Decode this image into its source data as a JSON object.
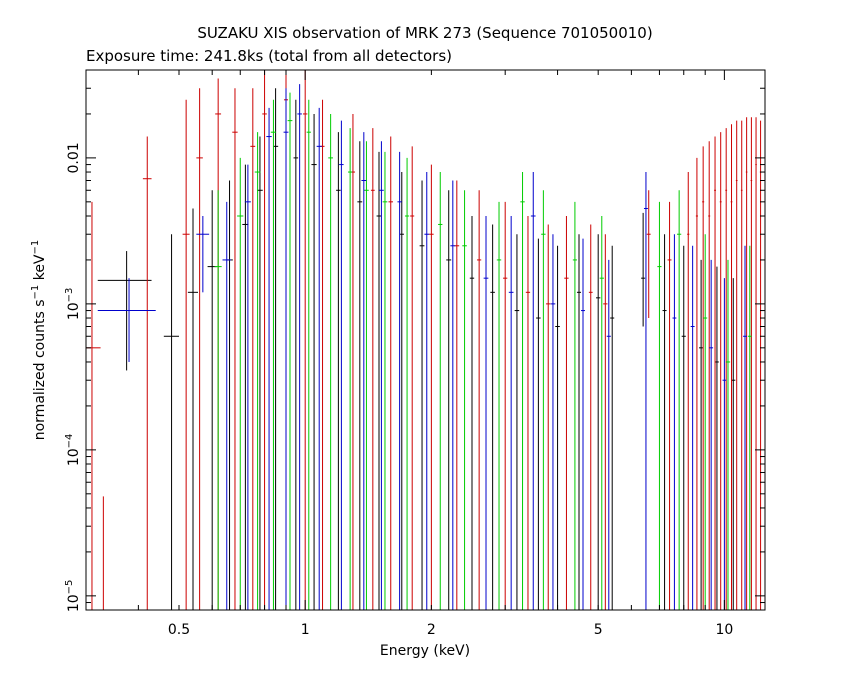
{
  "chart_data": {
    "type": "scatter",
    "title": "SUZAKU XIS observation of MRK 273 (Sequence 701050010)",
    "subtitle": "Exposure time: 241.8ks (total from all detectors)",
    "xlabel": "Energy (keV)",
    "ylabel": {
      "prefix": "normalized counts s",
      "sup1": "−1",
      "mid": " keV",
      "sup2": "−1"
    },
    "x_scale": "log",
    "y_scale": "log",
    "xlim": [
      0.3,
      12.5
    ],
    "ylim": [
      8e-06,
      0.04
    ],
    "x_ticks": [
      {
        "value": 0.5,
        "label": "0.5"
      },
      {
        "value": 1,
        "label": "1"
      },
      {
        "value": 2,
        "label": "2"
      },
      {
        "value": 5,
        "label": "5"
      },
      {
        "value": 10,
        "label": "10"
      }
    ],
    "y_ticks": [
      {
        "value": 1e-05,
        "base": "10",
        "exp": "−5"
      },
      {
        "value": 0.0001,
        "base": "10",
        "exp": "−4"
      },
      {
        "value": 0.001,
        "base": "10",
        "exp": "−3"
      },
      {
        "value": 0.01,
        "base": "0.01",
        "exp": ""
      }
    ],
    "grid": false,
    "legend": "none",
    "series": [
      {
        "color": "#000000",
        "points": [
          {
            "x": 0.375,
            "y": 0.00145,
            "xerr": 0.055,
            "ylo": 0.00035,
            "yhi": 0.0023
          },
          {
            "x": 0.48,
            "y": 0.0006,
            "xerr": 0.02,
            "ylo": 8e-06,
            "yhi": 0.003
          },
          {
            "x": 0.54,
            "y": 0.0012,
            "xerr": 0.015,
            "ylo": 8e-06,
            "yhi": 0.0045
          },
          {
            "x": 0.6,
            "y": 0.0018,
            "xerr": 0.015,
            "ylo": 8e-06,
            "yhi": 0.006
          },
          {
            "x": 0.66,
            "y": 0.002,
            "xerr": 0.012,
            "ylo": 8e-06,
            "yhi": 0.007
          },
          {
            "x": 0.72,
            "y": 0.0035,
            "xerr": 0.012,
            "ylo": 8e-06,
            "yhi": 0.009
          },
          {
            "x": 0.78,
            "y": 0.006,
            "xerr": 0.012,
            "ylo": 8e-06,
            "yhi": 0.014
          },
          {
            "x": 0.85,
            "y": 0.012,
            "xerr": 0.012,
            "ylo": 8e-06,
            "yhi": 0.03
          },
          {
            "x": 0.95,
            "y": 0.01,
            "xerr": 0.012,
            "ylo": 8e-06,
            "yhi": 0.025
          },
          {
            "x": 1.05,
            "y": 0.009,
            "xerr": 0.015,
            "ylo": 8e-06,
            "yhi": 0.02
          },
          {
            "x": 1.2,
            "y": 0.006,
            "xerr": 0.015,
            "ylo": 8e-06,
            "yhi": 0.015
          },
          {
            "x": 1.35,
            "y": 0.005,
            "xerr": 0.018,
            "ylo": 8e-06,
            "yhi": 0.013
          },
          {
            "x": 1.5,
            "y": 0.004,
            "xerr": 0.02,
            "ylo": 8e-06,
            "yhi": 0.011
          },
          {
            "x": 1.7,
            "y": 0.003,
            "xerr": 0.02,
            "ylo": 8e-06,
            "yhi": 0.008
          },
          {
            "x": 1.9,
            "y": 0.0025,
            "xerr": 0.025,
            "ylo": 8e-06,
            "yhi": 0.007
          },
          {
            "x": 2.2,
            "y": 0.002,
            "xerr": 0.03,
            "ylo": 8e-06,
            "yhi": 0.006
          },
          {
            "x": 2.5,
            "y": 0.0015,
            "xerr": 0.03,
            "ylo": 8e-06,
            "yhi": 0.004
          },
          {
            "x": 2.8,
            "y": 0.0012,
            "xerr": 0.035,
            "ylo": 8e-06,
            "yhi": 0.0035
          },
          {
            "x": 3.2,
            "y": 0.0009,
            "xerr": 0.04,
            "ylo": 8e-06,
            "yhi": 0.003
          },
          {
            "x": 3.6,
            "y": 0.0008,
            "xerr": 0.045,
            "ylo": 8e-06,
            "yhi": 0.0028
          },
          {
            "x": 4.0,
            "y": 0.0007,
            "xerr": 0.05,
            "ylo": 8e-06,
            "yhi": 0.0025
          },
          {
            "x": 4.5,
            "y": 0.0012,
            "xerr": 0.05,
            "ylo": 8e-06,
            "yhi": 0.003
          },
          {
            "x": 5.0,
            "y": 0.0011,
            "xerr": 0.06,
            "ylo": 8e-06,
            "yhi": 0.003
          },
          {
            "x": 5.4,
            "y": 0.0008,
            "xerr": 0.06,
            "ylo": 8e-06,
            "yhi": 0.0025
          },
          {
            "x": 6.4,
            "y": 0.0015,
            "xerr": 0.07,
            "ylo": 0.0007,
            "yhi": 0.0042
          },
          {
            "x": 7.2,
            "y": 0.0009,
            "xerr": 0.08,
            "ylo": 8e-06,
            "yhi": 0.003
          },
          {
            "x": 8.0,
            "y": 0.0006,
            "xerr": 0.09,
            "ylo": 8e-06,
            "yhi": 0.0025
          },
          {
            "x": 8.8,
            "y": 0.0005,
            "xerr": 0.1,
            "ylo": 8e-06,
            "yhi": 0.002
          },
          {
            "x": 9.6,
            "y": 0.0004,
            "xerr": 0.1,
            "ylo": 8e-06,
            "yhi": 0.0018
          },
          {
            "x": 10.5,
            "y": 0.0003,
            "xerr": 0.12,
            "ylo": 8e-06,
            "yhi": 0.0015
          }
        ]
      },
      {
        "color": "#cc0000",
        "points": [
          {
            "x": 0.31,
            "y": 0.0005,
            "xerr": 0.015,
            "ylo": 8e-06,
            "yhi": 0.005
          },
          {
            "x": 0.33,
            "y": 1.5e-05,
            "xerr": 0,
            "ylo": 8e-06,
            "yhi": 4.8e-05
          },
          {
            "x": 0.42,
            "y": 0.0072,
            "xerr": 0.01,
            "ylo": 8e-06,
            "yhi": 0.014
          },
          {
            "x": 0.52,
            "y": 0.003,
            "xerr": 0.01,
            "ylo": 8e-06,
            "yhi": 0.025
          },
          {
            "x": 0.56,
            "y": 0.01,
            "xerr": 0.01,
            "ylo": 8e-06,
            "yhi": 0.03
          },
          {
            "x": 0.62,
            "y": 0.02,
            "xerr": 0.01,
            "ylo": 8e-06,
            "yhi": 0.035
          },
          {
            "x": 0.68,
            "y": 0.015,
            "xerr": 0.01,
            "ylo": 8e-06,
            "yhi": 0.03
          },
          {
            "x": 0.75,
            "y": 0.012,
            "xerr": 0.01,
            "ylo": 8e-06,
            "yhi": 0.03
          },
          {
            "x": 0.8,
            "y": 0.02,
            "xerr": 0.01,
            "ylo": 8e-06,
            "yhi": 0.04
          },
          {
            "x": 0.9,
            "y": 0.025,
            "xerr": 0.01,
            "ylo": 8e-06,
            "yhi": 0.04
          },
          {
            "x": 1.0,
            "y": 0.02,
            "xerr": 0.012,
            "ylo": 8e-06,
            "yhi": 0.04
          },
          {
            "x": 1.1,
            "y": 0.012,
            "xerr": 0.012,
            "ylo": 8e-06,
            "yhi": 0.025
          },
          {
            "x": 1.3,
            "y": 0.008,
            "xerr": 0.015,
            "ylo": 8e-06,
            "yhi": 0.02
          },
          {
            "x": 1.45,
            "y": 0.006,
            "xerr": 0.015,
            "ylo": 8e-06,
            "yhi": 0.016
          },
          {
            "x": 1.6,
            "y": 0.005,
            "xerr": 0.02,
            "ylo": 8e-06,
            "yhi": 0.014
          },
          {
            "x": 1.8,
            "y": 0.004,
            "xerr": 0.02,
            "ylo": 8e-06,
            "yhi": 0.012
          },
          {
            "x": 2.0,
            "y": 0.003,
            "xerr": 0.025,
            "ylo": 8e-06,
            "yhi": 0.009
          },
          {
            "x": 2.3,
            "y": 0.0025,
            "xerr": 0.03,
            "ylo": 8e-06,
            "yhi": 0.007
          },
          {
            "x": 2.6,
            "y": 0.002,
            "xerr": 0.03,
            "ylo": 8e-06,
            "yhi": 0.006
          },
          {
            "x": 3.0,
            "y": 0.0015,
            "xerr": 0.035,
            "ylo": 8e-06,
            "yhi": 0.005
          },
          {
            "x": 3.4,
            "y": 0.0012,
            "xerr": 0.04,
            "ylo": 8e-06,
            "yhi": 0.004
          },
          {
            "x": 3.8,
            "y": 0.001,
            "xerr": 0.045,
            "ylo": 8e-06,
            "yhi": 0.0035
          },
          {
            "x": 4.2,
            "y": 0.0015,
            "xerr": 0.05,
            "ylo": 8e-06,
            "yhi": 0.004
          },
          {
            "x": 4.8,
            "y": 0.0012,
            "xerr": 0.05,
            "ylo": 8e-06,
            "yhi": 0.0035
          },
          {
            "x": 5.2,
            "y": 0.001,
            "xerr": 0.06,
            "ylo": 8e-06,
            "yhi": 0.003
          },
          {
            "x": 6.6,
            "y": 0.003,
            "xerr": 0.07,
            "ylo": 0.0008,
            "yhi": 0.006
          },
          {
            "x": 7.4,
            "y": 0.002,
            "xerr": 0.08,
            "ylo": 8e-06,
            "yhi": 0.005
          },
          {
            "x": 8.2,
            "y": 0.003,
            "xerr": 0.05,
            "ylo": 8e-06,
            "yhi": 0.008
          },
          {
            "x": 8.6,
            "y": 0.004,
            "xerr": 0.05,
            "ylo": 8e-06,
            "yhi": 0.01
          },
          {
            "x": 8.9,
            "y": 0.005,
            "xerr": 0.05,
            "ylo": 8e-06,
            "yhi": 0.012
          },
          {
            "x": 9.2,
            "y": 0.004,
            "xerr": 0.05,
            "ylo": 8e-06,
            "yhi": 0.013
          },
          {
            "x": 9.5,
            "y": 0.006,
            "xerr": 0.05,
            "ylo": 8e-06,
            "yhi": 0.014
          },
          {
            "x": 9.8,
            "y": 0.005,
            "xerr": 0.05,
            "ylo": 8e-06,
            "yhi": 0.015
          },
          {
            "x": 10.1,
            "y": 0.006,
            "xerr": 0.05,
            "ylo": 8e-06,
            "yhi": 0.016
          },
          {
            "x": 10.4,
            "y": 0.005,
            "xerr": 0.05,
            "ylo": 8e-06,
            "yhi": 0.017
          },
          {
            "x": 10.7,
            "y": 0.007,
            "xerr": 0.05,
            "ylo": 8e-06,
            "yhi": 0.018
          },
          {
            "x": 11.0,
            "y": 0.006,
            "xerr": 0.05,
            "ylo": 8e-06,
            "yhi": 0.018
          },
          {
            "x": 11.3,
            "y": 0.008,
            "xerr": 0.05,
            "ylo": 8e-06,
            "yhi": 0.019
          },
          {
            "x": 11.6,
            "y": 0.007,
            "xerr": 0.05,
            "ylo": 8e-06,
            "yhi": 0.019
          },
          {
            "x": 11.9,
            "y": 0.009,
            "xerr": 0.05,
            "ylo": 8e-06,
            "yhi": 0.019
          },
          {
            "x": 12.2,
            "y": 0.008,
            "xerr": 0.05,
            "ylo": 8e-06,
            "yhi": 0.018
          }
        ]
      },
      {
        "color": "#00cc00",
        "points": [
          {
            "x": 0.62,
            "y": 0.0018,
            "xerr": 0.012,
            "ylo": 8e-06,
            "yhi": 0.006
          },
          {
            "x": 0.7,
            "y": 0.004,
            "xerr": 0.012,
            "ylo": 8e-06,
            "yhi": 0.01
          },
          {
            "x": 0.77,
            "y": 0.008,
            "xerr": 0.012,
            "ylo": 8e-06,
            "yhi": 0.015
          },
          {
            "x": 0.84,
            "y": 0.015,
            "xerr": 0.012,
            "ylo": 8e-06,
            "yhi": 0.025
          },
          {
            "x": 0.92,
            "y": 0.018,
            "xerr": 0.012,
            "ylo": 8e-06,
            "yhi": 0.028
          },
          {
            "x": 1.02,
            "y": 0.015,
            "xerr": 0.012,
            "ylo": 8e-06,
            "yhi": 0.025
          },
          {
            "x": 1.15,
            "y": 0.01,
            "xerr": 0.015,
            "ylo": 8e-06,
            "yhi": 0.02
          },
          {
            "x": 1.28,
            "y": 0.008,
            "xerr": 0.015,
            "ylo": 8e-06,
            "yhi": 0.016
          },
          {
            "x": 1.4,
            "y": 0.006,
            "xerr": 0.018,
            "ylo": 8e-06,
            "yhi": 0.013
          },
          {
            "x": 1.55,
            "y": 0.005,
            "xerr": 0.02,
            "ylo": 8e-06,
            "yhi": 0.011
          },
          {
            "x": 1.75,
            "y": 0.004,
            "xerr": 0.02,
            "ylo": 8e-06,
            "yhi": 0.01
          },
          {
            "x": 2.1,
            "y": 0.0035,
            "xerr": 0.025,
            "ylo": 8e-06,
            "yhi": 0.008
          },
          {
            "x": 2.4,
            "y": 0.0025,
            "xerr": 0.03,
            "ylo": 8e-06,
            "yhi": 0.006
          },
          {
            "x": 2.9,
            "y": 0.002,
            "xerr": 0.035,
            "ylo": 8e-06,
            "yhi": 0.005
          },
          {
            "x": 3.3,
            "y": 0.005,
            "xerr": 0.04,
            "ylo": 8e-06,
            "yhi": 0.008
          },
          {
            "x": 3.7,
            "y": 0.003,
            "xerr": 0.045,
            "ylo": 8e-06,
            "yhi": 0.006
          },
          {
            "x": 4.4,
            "y": 0.002,
            "xerr": 0.05,
            "ylo": 8e-06,
            "yhi": 0.005
          },
          {
            "x": 5.1,
            "y": 0.0015,
            "xerr": 0.06,
            "ylo": 8e-06,
            "yhi": 0.004
          },
          {
            "x": 7.0,
            "y": 0.0018,
            "xerr": 0.08,
            "ylo": 8e-06,
            "yhi": 0.005
          },
          {
            "x": 7.8,
            "y": 0.003,
            "xerr": 0.09,
            "ylo": 8e-06,
            "yhi": 0.006
          },
          {
            "x": 9.0,
            "y": 0.0008,
            "xerr": 0.1,
            "ylo": 8e-06,
            "yhi": 0.003
          },
          {
            "x": 10.2,
            "y": 0.0004,
            "xerr": 0.12,
            "ylo": 8e-06,
            "yhi": 0.002
          },
          {
            "x": 11.5,
            "y": 0.0006,
            "xerr": 0.12,
            "ylo": 8e-06,
            "yhi": 0.0025
          }
        ]
      },
      {
        "color": "#0000cc",
        "points": [
          {
            "x": 0.38,
            "y": 0.0009,
            "xerr": 0.06,
            "ylo": 0.0004,
            "yhi": 0.0015
          },
          {
            "x": 0.57,
            "y": 0.003,
            "xerr": 0.02,
            "ylo": 0.0012,
            "yhi": 0.004
          },
          {
            "x": 0.65,
            "y": 0.002,
            "xerr": 0.015,
            "ylo": 8e-06,
            "yhi": 0.005
          },
          {
            "x": 0.73,
            "y": 0.005,
            "xerr": 0.012,
            "ylo": 8e-06,
            "yhi": 0.009
          },
          {
            "x": 0.82,
            "y": 0.014,
            "xerr": 0.012,
            "ylo": 8e-06,
            "yhi": 0.022
          },
          {
            "x": 0.9,
            "y": 0.015,
            "xerr": 0.012,
            "ylo": 8e-06,
            "yhi": 0.03
          },
          {
            "x": 0.97,
            "y": 0.02,
            "xerr": 0.012,
            "ylo": 8e-06,
            "yhi": 0.032
          },
          {
            "x": 1.08,
            "y": 0.012,
            "xerr": 0.015,
            "ylo": 8e-06,
            "yhi": 0.022
          },
          {
            "x": 1.22,
            "y": 0.009,
            "xerr": 0.015,
            "ylo": 8e-06,
            "yhi": 0.018
          },
          {
            "x": 1.38,
            "y": 0.007,
            "xerr": 0.018,
            "ylo": 8e-06,
            "yhi": 0.015
          },
          {
            "x": 1.52,
            "y": 0.006,
            "xerr": 0.02,
            "ylo": 8e-06,
            "yhi": 0.013
          },
          {
            "x": 1.68,
            "y": 0.005,
            "xerr": 0.02,
            "ylo": 8e-06,
            "yhi": 0.011
          },
          {
            "x": 1.95,
            "y": 0.003,
            "xerr": 0.025,
            "ylo": 8e-06,
            "yhi": 0.008
          },
          {
            "x": 2.25,
            "y": 0.0025,
            "xerr": 0.03,
            "ylo": 8e-06,
            "yhi": 0.007
          },
          {
            "x": 2.7,
            "y": 0.0015,
            "xerr": 0.035,
            "ylo": 8e-06,
            "yhi": 0.004
          },
          {
            "x": 3.1,
            "y": 0.0012,
            "xerr": 0.04,
            "ylo": 8e-06,
            "yhi": 0.004
          },
          {
            "x": 3.5,
            "y": 0.004,
            "xerr": 0.045,
            "ylo": 8e-06,
            "yhi": 0.008
          },
          {
            "x": 3.9,
            "y": 0.001,
            "xerr": 0.05,
            "ylo": 8e-06,
            "yhi": 0.003
          },
          {
            "x": 4.6,
            "y": 0.0009,
            "xerr": 0.05,
            "ylo": 8e-06,
            "yhi": 0.0028
          },
          {
            "x": 5.3,
            "y": 0.0006,
            "xerr": 0.06,
            "ylo": 8e-06,
            "yhi": 0.002
          },
          {
            "x": 6.5,
            "y": 0.0045,
            "xerr": 0.07,
            "ylo": 8e-06,
            "yhi": 0.008
          },
          {
            "x": 7.6,
            "y": 0.0008,
            "xerr": 0.08,
            "ylo": 8e-06,
            "yhi": 0.003
          },
          {
            "x": 8.4,
            "y": 0.0007,
            "xerr": 0.09,
            "ylo": 8e-06,
            "yhi": 0.0025
          },
          {
            "x": 9.3,
            "y": 0.0005,
            "xerr": 0.1,
            "ylo": 8e-06,
            "yhi": 0.002
          },
          {
            "x": 10.0,
            "y": 0.0003,
            "xerr": 0.1,
            "ylo": 8e-06,
            "yhi": 0.0015
          },
          {
            "x": 11.2,
            "y": 0.0006,
            "xerr": 0.12,
            "ylo": 8e-06,
            "yhi": 0.0025
          }
        ]
      }
    ]
  }
}
